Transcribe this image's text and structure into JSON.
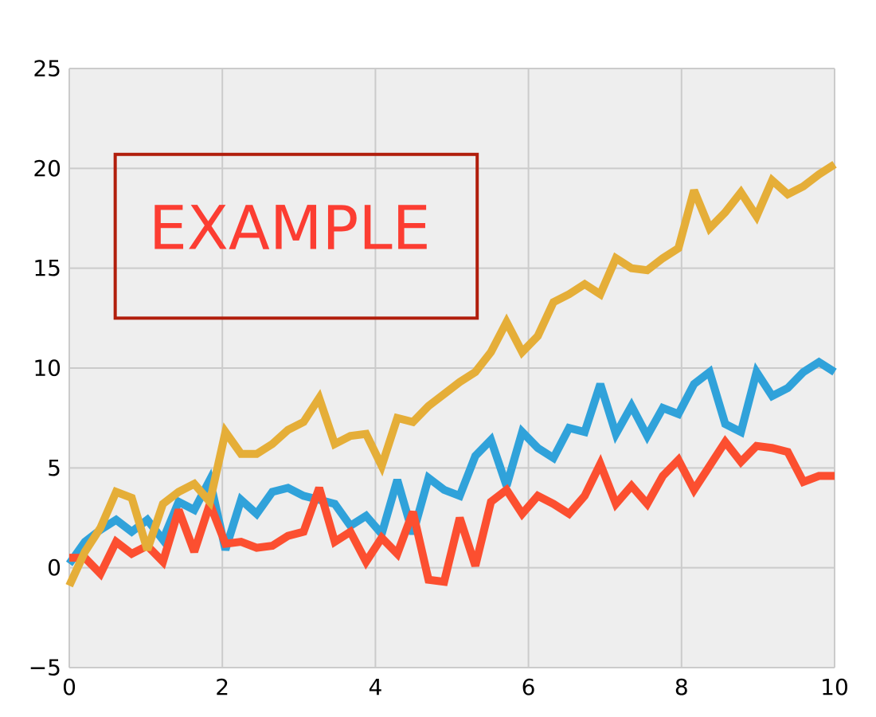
{
  "chart_data": {
    "type": "line",
    "xlim": [
      0,
      10
    ],
    "ylim": [
      -5,
      25
    ],
    "xticks": [
      0,
      2,
      4,
      6,
      8,
      10
    ],
    "yticks": [
      -5,
      0,
      5,
      10,
      15,
      20,
      25
    ],
    "xtick_labels": [
      "0",
      "2",
      "4",
      "6",
      "8",
      "10"
    ],
    "ytick_labels": [
      "−5",
      "0",
      "5",
      "10",
      "15",
      "20",
      "25"
    ],
    "grid": true,
    "colors": {
      "background": "#eeeeee",
      "grid": "#cbcbcb",
      "annotation_text": "#fc3d32",
      "annotation_border": "#b11e0c"
    },
    "annotation": {
      "text": "EXAMPLE",
      "box_x": [
        0.6,
        5.33
      ],
      "box_y": [
        12.5,
        20.7
      ],
      "text_x": 2.88,
      "text_y": 16.8
    },
    "x": [
      0,
      0.204,
      0.408,
      0.612,
      0.816,
      1.02,
      1.224,
      1.429,
      1.633,
      1.837,
      2.041,
      2.245,
      2.449,
      2.653,
      2.857,
      3.061,
      3.265,
      3.469,
      3.673,
      3.878,
      4.082,
      4.286,
      4.49,
      4.694,
      4.898,
      5.102,
      5.306,
      5.51,
      5.714,
      5.918,
      6.122,
      6.327,
      6.531,
      6.735,
      6.939,
      7.143,
      7.347,
      7.551,
      7.755,
      7.959,
      8.163,
      8.367,
      8.571,
      8.776,
      8.98,
      9.184,
      9.388,
      9.592,
      9.796,
      10
    ],
    "series": [
      {
        "color": "#30a2da",
        "values": [
          0.2,
          1.3,
          1.9,
          2.4,
          1.8,
          2.4,
          1.4,
          3.3,
          2.9,
          4.4,
          0.9,
          3.4,
          2.7,
          3.8,
          4.0,
          3.6,
          3.4,
          3.2,
          2.1,
          2.6,
          1.7,
          4.4,
          1.7,
          4.5,
          3.9,
          3.6,
          5.6,
          6.4,
          4.1,
          6.8,
          6.0,
          5.5,
          7.0,
          6.8,
          9.2,
          6.7,
          8.1,
          6.6,
          8.0,
          7.7,
          9.2,
          9.8,
          7.2,
          6.8,
          9.8,
          8.6,
          9.0,
          9.8,
          10.3,
          9.8
        ]
      },
      {
        "color": "#fc4f30",
        "values": [
          0.5,
          0.5,
          -0.3,
          1.3,
          0.7,
          1.1,
          0.3,
          2.9,
          0.8,
          3.2,
          1.2,
          1.3,
          1.0,
          1.1,
          1.6,
          1.8,
          4.0,
          1.3,
          1.8,
          0.3,
          1.5,
          0.7,
          2.8,
          -0.6,
          -0.7,
          2.5,
          0.1,
          3.3,
          3.9,
          2.7,
          3.6,
          3.2,
          2.7,
          3.6,
          5.2,
          3.2,
          4.1,
          3.2,
          4.6,
          5.4,
          3.9,
          5.1,
          6.3,
          5.3,
          6.1,
          6.0,
          5.8,
          4.3,
          4.6,
          4.6
        ]
      },
      {
        "color": "#e5ae38",
        "values": [
          -0.9,
          0.8,
          2.0,
          3.8,
          3.5,
          0.9,
          3.2,
          3.8,
          4.2,
          3.3,
          6.8,
          5.7,
          5.7,
          6.2,
          6.9,
          7.3,
          8.5,
          6.2,
          6.6,
          6.7,
          5.1,
          7.5,
          7.3,
          8.1,
          8.7,
          9.3,
          9.8,
          10.8,
          12.3,
          10.8,
          11.6,
          13.3,
          13.7,
          14.2,
          13.7,
          15.5,
          15.0,
          14.9,
          15.5,
          16.0,
          18.9,
          17.0,
          17.8,
          18.8,
          17.6,
          19.4,
          18.7,
          19.1,
          19.7,
          20.2
        ]
      }
    ]
  }
}
